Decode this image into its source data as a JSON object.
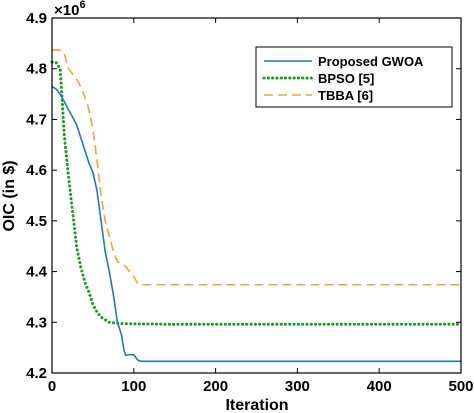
{
  "chart_data": {
    "type": "line",
    "title": "",
    "xlabel": "Iteration",
    "ylabel": "OIC  (in $)",
    "y_multiplier_base": "×10",
    "y_multiplier_exp": "6",
    "xlim": [
      0,
      500
    ],
    "ylim": [
      4.2,
      4.9
    ],
    "xticks": [
      0,
      100,
      200,
      300,
      400,
      500
    ],
    "yticks": [
      4.2,
      4.3,
      4.4,
      4.5,
      4.6,
      4.7,
      4.8,
      4.9
    ],
    "xtick_labels": [
      "0",
      "100",
      "200",
      "300",
      "400",
      "500"
    ],
    "ytick_labels": [
      "4.2",
      "4.3",
      "4.4",
      "4.5",
      "4.6",
      "4.7",
      "4.8",
      "4.9"
    ],
    "legend_position": "top-right",
    "grid": false,
    "series": [
      {
        "name": "Proposed GWOA",
        "color": "#1f77c9",
        "style": "solid",
        "x": [
          0,
          5,
          10,
          15,
          20,
          25,
          30,
          35,
          40,
          45,
          50,
          55,
          60,
          65,
          70,
          75,
          80,
          85,
          88,
          90,
          95,
          100,
          105,
          110,
          150,
          200,
          300,
          400,
          500
        ],
        "y": [
          4.765,
          4.76,
          4.75,
          4.735,
          4.72,
          4.705,
          4.69,
          4.665,
          4.64,
          4.615,
          4.595,
          4.56,
          4.5,
          4.44,
          4.4,
          4.355,
          4.3,
          4.275,
          4.245,
          4.235,
          4.236,
          4.236,
          4.225,
          4.223,
          4.223,
          4.223,
          4.223,
          4.223,
          4.223
        ]
      },
      {
        "name": "BPSO [5]",
        "color": "#1a9a1a",
        "style": "dotted",
        "x": [
          0,
          5,
          10,
          12,
          15,
          20,
          25,
          30,
          35,
          40,
          45,
          50,
          55,
          60,
          65,
          70,
          80,
          90,
          100,
          150,
          200,
          300,
          400,
          500
        ],
        "y": [
          4.813,
          4.812,
          4.8,
          4.75,
          4.67,
          4.59,
          4.52,
          4.45,
          4.41,
          4.38,
          4.36,
          4.335,
          4.32,
          4.31,
          4.305,
          4.3,
          4.298,
          4.297,
          4.297,
          4.296,
          4.296,
          4.296,
          4.296,
          4.296
        ]
      },
      {
        "name": "TBBA [6]",
        "color": "#f2a03b",
        "style": "dashed",
        "x": [
          0,
          10,
          15,
          20,
          25,
          30,
          35,
          40,
          45,
          50,
          55,
          60,
          65,
          70,
          75,
          80,
          90,
          100,
          105,
          110,
          150,
          200,
          300,
          400,
          500
        ],
        "y": [
          4.837,
          4.837,
          4.83,
          4.8,
          4.79,
          4.78,
          4.765,
          4.745,
          4.72,
          4.68,
          4.62,
          4.55,
          4.5,
          4.47,
          4.44,
          4.42,
          4.41,
          4.39,
          4.376,
          4.374,
          4.374,
          4.374,
          4.374,
          4.374,
          4.374
        ]
      }
    ]
  }
}
